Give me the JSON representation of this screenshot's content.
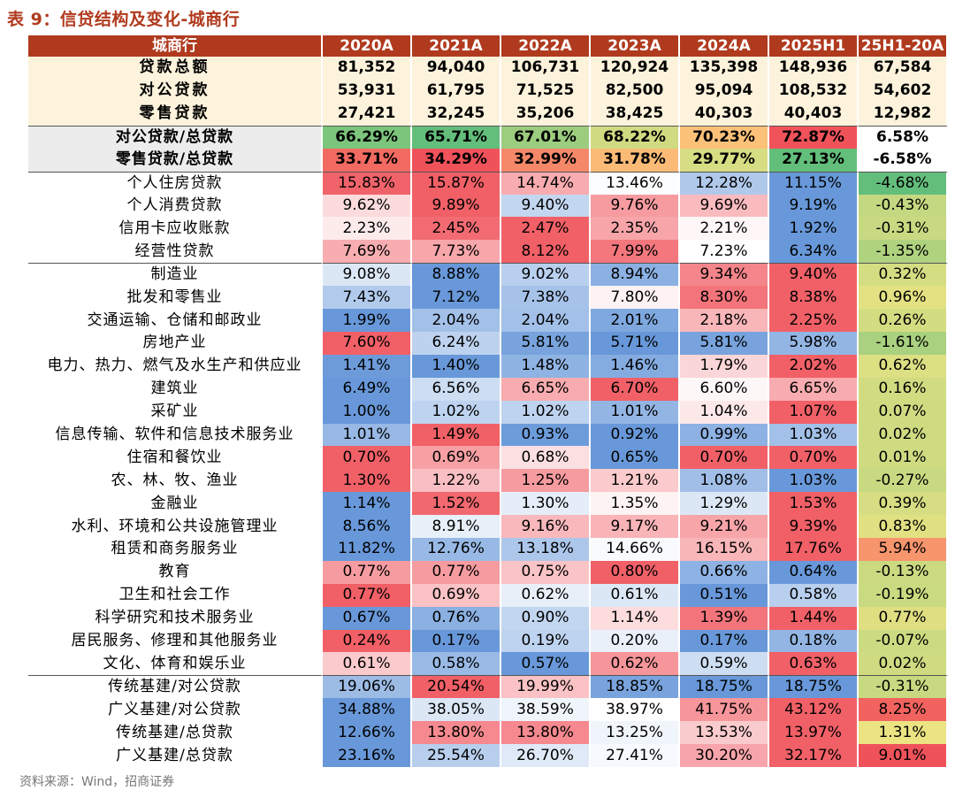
{
  "caption": "表 9：信贷结构及变化-城商行",
  "source": "资料来源：Wind，招商证券",
  "headers": [
    "城商行",
    "2020A",
    "2021A",
    "2022A",
    "2023A",
    "2024A",
    "2025H1",
    "25H1-20A"
  ],
  "colors": {
    "header_bg": "#b03a1e",
    "summary_bg": "#fdf3dc",
    "ratio_label_bg": "#ececec",
    "high": "#f0525a",
    "low": "#5b8fd6",
    "green": "#63be7b",
    "yellow": "#ffe884",
    "neutral": "#ffffff"
  },
  "rows": [
    {
      "label": "贷款总额",
      "type": "sum",
      "values": [
        "81,352",
        "94,040",
        "106,731",
        "120,924",
        "135,398",
        "148,936",
        "67,584"
      ]
    },
    {
      "label": "对公贷款",
      "type": "sum",
      "values": [
        "53,931",
        "61,795",
        "71,525",
        "82,500",
        "95,094",
        "108,532",
        "54,602"
      ]
    },
    {
      "label": "零售贷款",
      "type": "sum",
      "values": [
        "27,421",
        "32,245",
        "35,206",
        "38,425",
        "40,303",
        "40,403",
        "12,982"
      ]
    },
    {
      "label": "对公贷款/总贷款",
      "type": "ratio",
      "sectionTop": true,
      "values": [
        "66.29%",
        "65.71%",
        "67.01%",
        "68.22%",
        "70.23%",
        "72.87%",
        "6.58%"
      ]
    },
    {
      "label": "零售贷款/总贷款",
      "type": "ratio",
      "values": [
        "33.71%",
        "34.29%",
        "32.99%",
        "31.78%",
        "29.77%",
        "27.13%",
        "-6.58%"
      ]
    },
    {
      "label": "个人住房贷款",
      "type": "detail",
      "sectionTop": true,
      "values": [
        "15.83%",
        "15.87%",
        "14.74%",
        "13.46%",
        "12.28%",
        "11.15%",
        "-4.68%"
      ]
    },
    {
      "label": "个人消费贷款",
      "type": "detail",
      "values": [
        "9.62%",
        "9.89%",
        "9.40%",
        "9.76%",
        "9.69%",
        "9.19%",
        "-0.43%"
      ]
    },
    {
      "label": "信用卡应收账款",
      "type": "detail",
      "values": [
        "2.23%",
        "2.45%",
        "2.47%",
        "2.35%",
        "2.21%",
        "1.92%",
        "-0.31%"
      ]
    },
    {
      "label": "经营性贷款",
      "type": "detail",
      "values": [
        "7.69%",
        "7.73%",
        "8.12%",
        "7.99%",
        "7.23%",
        "6.34%",
        "-1.35%"
      ]
    },
    {
      "label": "制造业",
      "type": "detail",
      "sectionTop": true,
      "values": [
        "9.08%",
        "8.88%",
        "9.02%",
        "8.94%",
        "9.34%",
        "9.40%",
        "0.32%"
      ]
    },
    {
      "label": "批发和零售业",
      "type": "detail",
      "values": [
        "7.43%",
        "7.12%",
        "7.38%",
        "7.80%",
        "8.30%",
        "8.38%",
        "0.96%"
      ]
    },
    {
      "label": "交通运输、仓储和邮政业",
      "type": "detail",
      "values": [
        "1.99%",
        "2.04%",
        "2.04%",
        "2.01%",
        "2.18%",
        "2.25%",
        "0.26%"
      ]
    },
    {
      "label": "房地产业",
      "type": "detail",
      "values": [
        "7.60%",
        "6.24%",
        "5.81%",
        "5.71%",
        "5.81%",
        "5.98%",
        "-1.61%"
      ]
    },
    {
      "label": "电力、热力、燃气及水生产和供应业",
      "type": "detail",
      "values": [
        "1.41%",
        "1.40%",
        "1.48%",
        "1.46%",
        "1.79%",
        "2.02%",
        "0.62%"
      ]
    },
    {
      "label": "建筑业",
      "type": "detail",
      "values": [
        "6.49%",
        "6.56%",
        "6.65%",
        "6.70%",
        "6.60%",
        "6.65%",
        "0.16%"
      ]
    },
    {
      "label": "采矿业",
      "type": "detail",
      "values": [
        "1.00%",
        "1.02%",
        "1.02%",
        "1.01%",
        "1.04%",
        "1.07%",
        "0.07%"
      ]
    },
    {
      "label": "信息传输、软件和信息技术服务业",
      "type": "detail",
      "values": [
        "1.01%",
        "1.49%",
        "0.93%",
        "0.92%",
        "0.99%",
        "1.03%",
        "0.02%"
      ]
    },
    {
      "label": "住宿和餐饮业",
      "type": "detail",
      "values": [
        "0.70%",
        "0.69%",
        "0.68%",
        "0.65%",
        "0.70%",
        "0.70%",
        "0.01%"
      ]
    },
    {
      "label": "农、林、牧、渔业",
      "type": "detail",
      "values": [
        "1.30%",
        "1.22%",
        "1.25%",
        "1.21%",
        "1.08%",
        "1.03%",
        "-0.27%"
      ]
    },
    {
      "label": "金融业",
      "type": "detail",
      "values": [
        "1.14%",
        "1.52%",
        "1.30%",
        "1.35%",
        "1.29%",
        "1.53%",
        "0.39%"
      ]
    },
    {
      "label": "水利、环境和公共设施管理业",
      "type": "detail",
      "values": [
        "8.56%",
        "8.91%",
        "9.16%",
        "9.17%",
        "9.21%",
        "9.39%",
        "0.83%"
      ]
    },
    {
      "label": "租赁和商务服务业",
      "type": "detail",
      "values": [
        "11.82%",
        "12.76%",
        "13.18%",
        "14.66%",
        "16.15%",
        "17.76%",
        "5.94%"
      ]
    },
    {
      "label": "教育",
      "type": "detail",
      "values": [
        "0.77%",
        "0.77%",
        "0.75%",
        "0.80%",
        "0.66%",
        "0.64%",
        "-0.13%"
      ]
    },
    {
      "label": "卫生和社会工作",
      "type": "detail",
      "values": [
        "0.77%",
        "0.69%",
        "0.62%",
        "0.61%",
        "0.51%",
        "0.58%",
        "-0.19%"
      ]
    },
    {
      "label": "科学研究和技术服务业",
      "type": "detail",
      "values": [
        "0.67%",
        "0.76%",
        "0.90%",
        "1.14%",
        "1.39%",
        "1.44%",
        "0.77%"
      ]
    },
    {
      "label": "居民服务、修理和其他服务业",
      "type": "detail",
      "values": [
        "0.24%",
        "0.17%",
        "0.19%",
        "0.20%",
        "0.17%",
        "0.18%",
        "-0.07%"
      ]
    },
    {
      "label": "文化、体育和娱乐业",
      "type": "detail",
      "values": [
        "0.61%",
        "0.58%",
        "0.57%",
        "0.62%",
        "0.59%",
        "0.63%",
        "0.02%"
      ]
    },
    {
      "label": "传统基建/对公贷款",
      "type": "detail",
      "sectionTop": true,
      "values": [
        "19.06%",
        "20.54%",
        "19.99%",
        "18.85%",
        "18.75%",
        "18.75%",
        "-0.31%"
      ]
    },
    {
      "label": "广义基建/对公贷款",
      "type": "detail",
      "values": [
        "34.88%",
        "38.05%",
        "38.59%",
        "38.97%",
        "41.75%",
        "43.12%",
        "8.25%"
      ]
    },
    {
      "label": "传统基建/总贷款",
      "type": "detail",
      "values": [
        "12.66%",
        "13.80%",
        "13.80%",
        "13.25%",
        "13.53%",
        "13.97%",
        "1.31%"
      ]
    },
    {
      "label": "广义基建/总贷款",
      "type": "detail",
      "values": [
        "23.16%",
        "25.54%",
        "26.70%",
        "27.41%",
        "30.20%",
        "32.17%",
        "9.01%"
      ]
    }
  ]
}
